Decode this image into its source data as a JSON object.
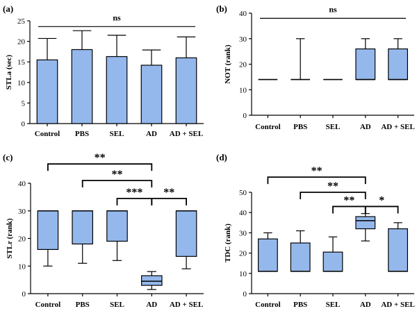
{
  "colors": {
    "fill": "#94b8ec",
    "stroke": "#000000"
  },
  "chart_data": [
    {
      "panel": "(a)",
      "type": "bar",
      "ylabel": "STLa (sec)",
      "ylim": [
        0,
        25
      ],
      "yticks": [
        0,
        5,
        10,
        15,
        20,
        25
      ],
      "categories": [
        "Control",
        "PBS",
        "SEL",
        "AD",
        "AD + SEL"
      ],
      "values": [
        15.5,
        18.0,
        16.3,
        14.2,
        16.0
      ],
      "error_upper": [
        20.7,
        22.6,
        21.5,
        17.9,
        21.1
      ],
      "annotations": [
        {
          "type": "line",
          "y": 23.6,
          "from": 0,
          "to": 4,
          "text": "ns"
        }
      ]
    },
    {
      "panel": "(b)",
      "type": "box",
      "ylabel": "NOT (rank)",
      "ylim": [
        0,
        40
      ],
      "yticks": [
        0,
        10,
        20,
        30,
        40
      ],
      "categories": [
        "Control",
        "PBS",
        "SEL",
        "AD",
        "AD + SEL"
      ],
      "boxes": [
        {
          "min": 14,
          "q1": 14,
          "median": 14,
          "q3": 14,
          "max": 14
        },
        {
          "min": 14,
          "q1": 14,
          "median": 14,
          "q3": 14,
          "max": 30
        },
        {
          "min": 14,
          "q1": 14,
          "median": 14,
          "q3": 14,
          "max": 14
        },
        {
          "min": 14,
          "q1": 14,
          "median": 14,
          "q3": 26,
          "max": 30
        },
        {
          "min": 14,
          "q1": 14,
          "median": 14,
          "q3": 26,
          "max": 30
        }
      ],
      "annotations": [
        {
          "type": "line",
          "y": 38,
          "from": 0,
          "to": 4,
          "text": "ns"
        }
      ]
    },
    {
      "panel": "(c)",
      "type": "box",
      "ylabel": "STLr (rank)",
      "ylim": [
        0,
        40
      ],
      "yticks": [
        0,
        10,
        20,
        30,
        40
      ],
      "categories": [
        "Control",
        "PBS",
        "SEL",
        "AD",
        "AD + SEL"
      ],
      "boxes": [
        {
          "min": 10,
          "q1": 16,
          "median": 30,
          "q3": 30,
          "max": 30
        },
        {
          "min": 11,
          "q1": 18,
          "median": 30,
          "q3": 30,
          "max": 30
        },
        {
          "min": 12,
          "q1": 19,
          "median": 30,
          "q3": 30,
          "max": 30
        },
        {
          "min": 1.5,
          "q1": 3,
          "median": 4.5,
          "q3": 6.5,
          "max": 8
        },
        {
          "min": 9,
          "q1": 13.5,
          "median": 30,
          "q3": 30,
          "max": 30
        }
      ],
      "annotations": [
        {
          "type": "bracket",
          "from": 0,
          "to": 3,
          "y": 47,
          "text": "**"
        },
        {
          "type": "bracket",
          "from": 1,
          "to": 3,
          "y": 41,
          "text": "**"
        },
        {
          "type": "bracket",
          "from": 2,
          "to": 3,
          "y": 34.5,
          "text": "***"
        },
        {
          "type": "bracket",
          "from": 3,
          "to": 4,
          "y": 34.5,
          "text": "**"
        }
      ]
    },
    {
      "panel": "(d)",
      "type": "box",
      "ylabel": "TDC (rank)",
      "ylim": [
        0,
        50
      ],
      "yticks": [
        0,
        10,
        20,
        30,
        40,
        50
      ],
      "categories": [
        "Control",
        "PBS",
        "SEL",
        "AD",
        "AD + SEL"
      ],
      "boxes": [
        {
          "min": 11,
          "q1": 11,
          "median": 11,
          "q3": 27,
          "max": 30
        },
        {
          "min": 11,
          "q1": 11,
          "median": 11,
          "q3": 25,
          "max": 31
        },
        {
          "min": 11,
          "q1": 11,
          "median": 11,
          "q3": 20.5,
          "max": 28
        },
        {
          "min": 26,
          "q1": 32,
          "median": 36,
          "q3": 38,
          "max": 39.5
        },
        {
          "min": 11,
          "q1": 11,
          "median": 11,
          "q3": 32,
          "max": 35
        }
      ],
      "annotations": [
        {
          "type": "bracket",
          "from": 0,
          "to": 3,
          "y": 57.5,
          "text": "**"
        },
        {
          "type": "bracket",
          "from": 1,
          "to": 3,
          "y": 50,
          "text": "**"
        },
        {
          "type": "bracket",
          "from": 2,
          "to": 3,
          "y": 43,
          "text": "**"
        },
        {
          "type": "bracket",
          "from": 3,
          "to": 4,
          "y": 43,
          "text": "*"
        }
      ]
    }
  ]
}
